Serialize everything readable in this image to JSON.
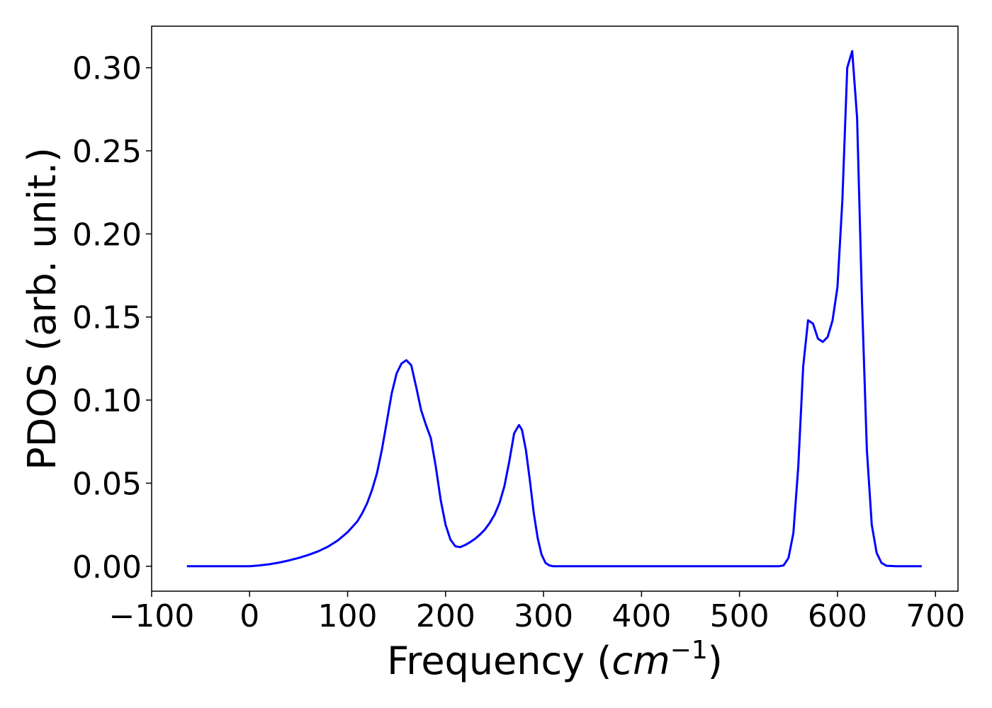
{
  "chart_data": {
    "type": "line",
    "title": "",
    "xlabel_main": "Frequency (",
    "xlabel_math_base": "cm",
    "xlabel_math_sup": "−1",
    "xlabel_close": ")",
    "ylabel": "PDOS (arb. unit.)",
    "xlim": [
      -100,
      723
    ],
    "ylim": [
      -0.015,
      0.325
    ],
    "grid": false,
    "legend": "none",
    "xticks": [
      -100,
      0,
      100,
      200,
      300,
      400,
      500,
      600,
      700
    ],
    "xtick_labels": [
      "−100",
      "0",
      "100",
      "200",
      "300",
      "400",
      "500",
      "600",
      "700"
    ],
    "yticks": [
      0.0,
      0.05,
      0.1,
      0.15,
      0.2,
      0.25,
      0.3
    ],
    "ytick_labels": [
      "0.00",
      "0.05",
      "0.10",
      "0.15",
      "0.20",
      "0.25",
      "0.30"
    ],
    "series": [
      {
        "color": "#0000ff",
        "x": [
          -64,
          -20,
          0,
          10,
          20,
          30,
          40,
          50,
          60,
          70,
          80,
          90,
          100,
          110,
          115,
          120,
          125,
          130,
          135,
          140,
          145,
          150,
          155,
          160,
          165,
          170,
          175,
          180,
          185,
          190,
          195,
          200,
          205,
          210,
          215,
          220,
          225,
          230,
          235,
          240,
          245,
          250,
          255,
          260,
          265,
          270,
          275,
          278,
          282,
          286,
          290,
          294,
          298,
          302,
          306,
          310,
          315,
          320,
          400,
          500,
          540,
          545,
          550,
          555,
          560,
          565,
          570,
          575,
          580,
          585,
          590,
          595,
          600,
          605,
          610,
          615,
          620,
          625,
          630,
          635,
          640,
          645,
          650,
          660,
          686
        ],
        "y": [
          0,
          0,
          0,
          0.0005,
          0.0012,
          0.0022,
          0.0035,
          0.005,
          0.0068,
          0.009,
          0.0118,
          0.0155,
          0.0205,
          0.027,
          0.032,
          0.038,
          0.046,
          0.056,
          0.07,
          0.087,
          0.104,
          0.116,
          0.122,
          0.124,
          0.121,
          0.108,
          0.094,
          0.085,
          0.077,
          0.06,
          0.04,
          0.025,
          0.016,
          0.012,
          0.0115,
          0.0128,
          0.0145,
          0.0165,
          0.019,
          0.022,
          0.026,
          0.031,
          0.038,
          0.048,
          0.063,
          0.08,
          0.085,
          0.082,
          0.07,
          0.052,
          0.032,
          0.017,
          0.007,
          0.002,
          0.0005,
          0,
          0,
          0,
          0,
          0,
          0,
          0.0005,
          0.005,
          0.02,
          0.06,
          0.12,
          0.148,
          0.146,
          0.137,
          0.135,
          0.138,
          0.148,
          0.168,
          0.22,
          0.3,
          0.31,
          0.27,
          0.16,
          0.07,
          0.025,
          0.008,
          0.002,
          0.0003,
          0,
          0
        ]
      }
    ]
  }
}
